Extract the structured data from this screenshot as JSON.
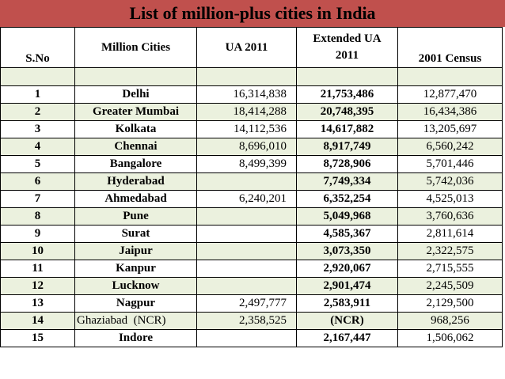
{
  "title": "List of million-plus cities in India",
  "headers": {
    "sno": "S.No",
    "city": "Million Cities",
    "ua2011": "UA 2011",
    "extended_line1": "Extended UA",
    "extended_line2": "2011",
    "census2001": "2001 Census"
  },
  "rows": [
    {
      "sno": "1",
      "city": "Delhi",
      "ua2011": "16,314,838",
      "extended": "21,753,486",
      "census2001": "12,877,470"
    },
    {
      "sno": "2",
      "city": "Greater Mumbai",
      "ua2011": "18,414,288",
      "extended": "20,748,395",
      "census2001": "16,434,386"
    },
    {
      "sno": "3",
      "city": "Kolkata",
      "ua2011": "14,112,536",
      "extended": "14,617,882",
      "census2001": "13,205,697"
    },
    {
      "sno": "4",
      "city": "Chennai",
      "ua2011": "8,696,010",
      "extended": "8,917,749",
      "census2001": "6,560,242"
    },
    {
      "sno": "5",
      "city": "Bangalore",
      "ua2011": "8,499,399",
      "extended": "8,728,906",
      "census2001": "5,701,446"
    },
    {
      "sno": "6",
      "city": "Hyderabad",
      "ua2011": "",
      "extended": "7,749,334",
      "census2001": "5,742,036"
    },
    {
      "sno": "7",
      "city": "Ahmedabad",
      "ua2011": "6,240,201",
      "extended": "6,352,254",
      "census2001": "4,525,013"
    },
    {
      "sno": "8",
      "city": "Pune",
      "ua2011": "",
      "extended": "5,049,968",
      "census2001": "3,760,636"
    },
    {
      "sno": "9",
      "city": "Surat",
      "ua2011": "",
      "extended": "4,585,367",
      "census2001": "2,811,614"
    },
    {
      "sno": "10",
      "city": "Jaipur",
      "ua2011": "",
      "extended": "3,073,350",
      "census2001": "2,322,575"
    },
    {
      "sno": "11",
      "city": "Kanpur",
      "ua2011": "",
      "extended": "2,920,067",
      "census2001": "2,715,555"
    },
    {
      "sno": "12",
      "city": "Lucknow",
      "ua2011": "",
      "extended": "2,901,474",
      "census2001": "2,245,509"
    },
    {
      "sno": "13",
      "city": "Nagpur",
      "ua2011": "2,497,777",
      "extended": "2,583,911",
      "census2001": "2,129,500"
    },
    {
      "sno": "14",
      "city": "Ghaziabad  (NCR)",
      "ua2011": "2,358,525",
      "extended": "(NCR)",
      "census2001": "968,256"
    },
    {
      "sno": "15",
      "city": "Indore",
      "ua2011": "",
      "extended": "2,167,447",
      "census2001": "1,506,062"
    }
  ],
  "colors": {
    "title_bar": "#c0504d",
    "row_alt": "#ebf1de",
    "border": "#000000"
  }
}
